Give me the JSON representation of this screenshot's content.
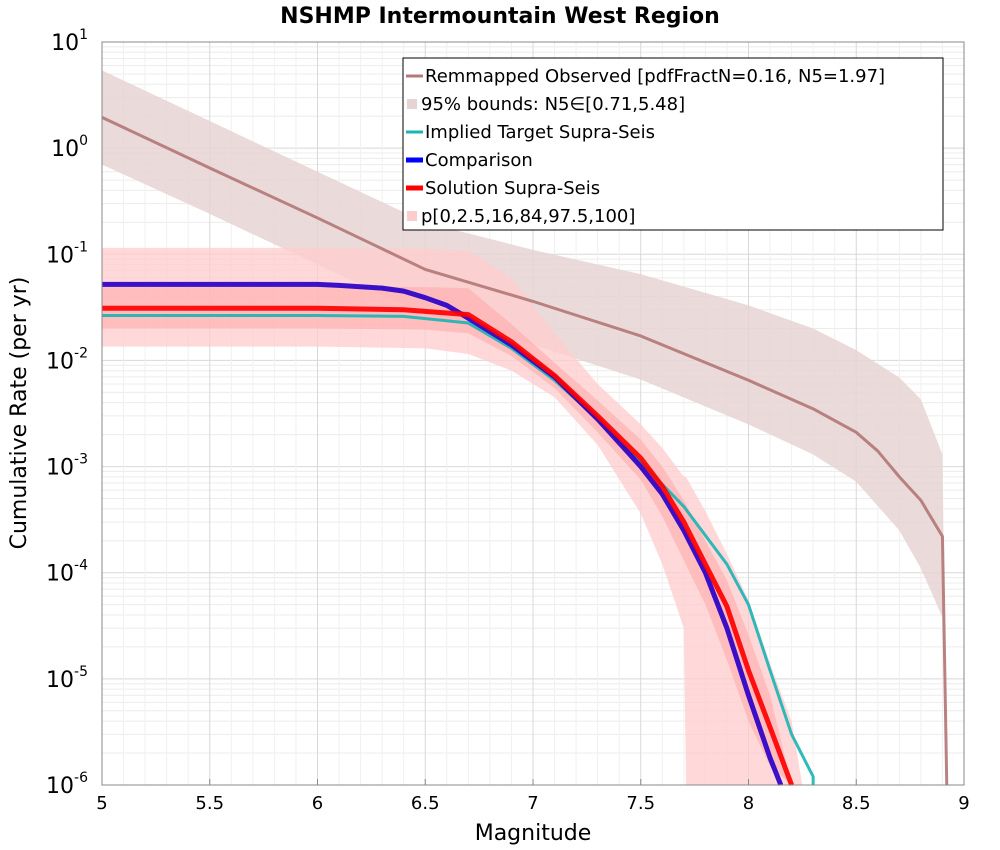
{
  "chart_data": {
    "type": "line",
    "title": "NSHMP Intermountain West Region",
    "xlabel": "Magnitude",
    "ylabel": "Cumulative Rate (per yr)",
    "xlim": [
      5,
      9
    ],
    "ylim": [
      1e-06,
      10
    ],
    "yscale": "log",
    "grid": true,
    "legend_position": "top-right",
    "x_ticks": [
      "5",
      "5.5",
      "6",
      "6.5",
      "7",
      "7.5",
      "8",
      "8.5",
      "9"
    ],
    "y_ticks": [
      {
        "base": "10",
        "exp": "1"
      },
      {
        "base": "10",
        "exp": "0"
      },
      {
        "base": "10",
        "exp": "-1"
      },
      {
        "base": "10",
        "exp": "-2"
      },
      {
        "base": "10",
        "exp": "-3"
      },
      {
        "base": "10",
        "exp": "-4"
      },
      {
        "base": "10",
        "exp": "-5"
      },
      {
        "base": "10",
        "exp": "-6"
      }
    ],
    "legend": [
      {
        "label": "Remmapped Observed [pdfFractN=0.16, N5=1.97]",
        "color": "#b47878",
        "kind": "line"
      },
      {
        "label": "95% bounds: N5∈[0.71,5.48]",
        "color": "#e6d4d4",
        "kind": "band"
      },
      {
        "label": "Implied Target Supra-Seis",
        "color": "#1eb4b4",
        "kind": "line"
      },
      {
        "label": "Comparison",
        "color": "#0000ff",
        "kind": "thick-line"
      },
      {
        "label": "Solution Supra-Seis",
        "color": "#ff0000",
        "kind": "thick-line"
      },
      {
        "label": "p[0,2.5,16,84,97.5,100]",
        "color": "#ffcccc",
        "kind": "band"
      }
    ],
    "series": [
      {
        "name": "Remmapped Observed [pdfFractN=0.16, N5=1.97]",
        "color": "#b47878",
        "width": 3,
        "x": [
          5.0,
          5.5,
          6.0,
          6.5,
          7.0,
          7.5,
          8.0,
          8.3,
          8.5,
          8.6,
          8.7,
          8.8,
          8.9,
          8.92
        ],
        "y": [
          1.95,
          0.65,
          0.22,
          0.072,
          0.036,
          0.017,
          0.0065,
          0.0035,
          0.0021,
          0.0014,
          0.0008,
          0.00048,
          0.00022,
          1e-06
        ]
      },
      {
        "name": "Implied Target Supra-Seis",
        "color": "#1eb4b4",
        "width": 3,
        "x": [
          5.0,
          5.5,
          6.0,
          6.4,
          6.7,
          6.9,
          7.1,
          7.3,
          7.5,
          7.7,
          7.9,
          8.0,
          8.1,
          8.2,
          8.3,
          8.3
        ],
        "y": [
          0.0265,
          0.0265,
          0.0265,
          0.026,
          0.0225,
          0.013,
          0.0065,
          0.0028,
          0.0011,
          0.00042,
          0.00012,
          5e-05,
          1.2e-05,
          3e-06,
          1.2e-06,
          1e-06
        ]
      },
      {
        "name": "Comparison",
        "color": "#2a00c8",
        "width": 5,
        "x": [
          5.0,
          5.5,
          6.0,
          6.1,
          6.3,
          6.4,
          6.5,
          6.6,
          6.7,
          6.9,
          7.1,
          7.3,
          7.5,
          7.6,
          7.7,
          7.8,
          7.9,
          8.0,
          8.1,
          8.15
        ],
        "y": [
          0.052,
          0.052,
          0.052,
          0.051,
          0.048,
          0.045,
          0.039,
          0.033,
          0.025,
          0.014,
          0.007,
          0.0028,
          0.001,
          0.00055,
          0.00025,
          0.0001,
          3e-05,
          7e-06,
          1.8e-06,
          1e-06
        ]
      },
      {
        "name": "Solution Supra-Seis",
        "color": "#ff0000",
        "width": 5,
        "x": [
          5.0,
          5.5,
          6.0,
          6.4,
          6.7,
          6.9,
          7.1,
          7.3,
          7.5,
          7.6,
          7.7,
          7.8,
          7.9,
          8.0,
          8.1,
          8.2
        ],
        "y": [
          0.031,
          0.031,
          0.031,
          0.03,
          0.027,
          0.015,
          0.0072,
          0.003,
          0.0012,
          0.00065,
          0.0003,
          0.00012,
          4.8e-05,
          1.2e-05,
          3.5e-06,
          1e-06
        ]
      }
    ],
    "bands": [
      {
        "name": "95% bounds: N5∈[0.71,5.48]",
        "color": "#e6d4d4",
        "x": [
          5.0,
          5.5,
          6.0,
          6.5,
          7.0,
          7.5,
          8.0,
          8.3,
          8.5,
          8.7,
          8.8,
          8.9,
          8.92
        ],
        "upper": [
          5.4,
          1.8,
          0.6,
          0.2,
          0.11,
          0.065,
          0.033,
          0.02,
          0.0125,
          0.0069,
          0.0043,
          0.0013,
          1e-06
        ],
        "lower": [
          0.7,
          0.24,
          0.08,
          0.027,
          0.014,
          0.0066,
          0.0025,
          0.0013,
          0.00072,
          0.00025,
          0.00011,
          3.8e-05,
          1e-06
        ]
      },
      {
        "name": "p[0,2.5,16,84,97.5,100] outer",
        "color": "#ffcccc",
        "x": [
          5.0,
          5.5,
          6.0,
          6.5,
          6.7,
          6.9,
          7.1,
          7.3,
          7.5,
          7.6,
          7.7,
          7.71,
          7.8,
          7.9,
          8.0,
          8.1,
          8.2,
          8.25
        ],
        "upper": [
          0.115,
          0.115,
          0.115,
          0.113,
          0.108,
          0.06,
          0.018,
          0.006,
          0.0025,
          0.0015,
          0.0008,
          0.0008,
          0.00038,
          0.00015,
          5.5e-05,
          1.4e-05,
          4e-06,
          1e-06
        ],
        "lower": [
          0.0135,
          0.0135,
          0.0135,
          0.013,
          0.0115,
          0.008,
          0.0045,
          0.0016,
          0.00036,
          0.00012,
          3e-05,
          1e-06,
          1e-06,
          1e-06,
          1e-06,
          1e-06,
          1e-06,
          1e-06
        ]
      },
      {
        "name": "p[0,2.5,16,84,97.5,100] inner",
        "color": "#ffb3b3",
        "x": [
          5.0,
          5.5,
          6.0,
          6.5,
          6.7,
          6.9,
          7.1,
          7.3,
          7.5,
          7.6,
          7.7,
          7.8,
          7.9,
          8.0,
          8.1,
          8.2
        ],
        "upper": [
          0.05,
          0.05,
          0.05,
          0.049,
          0.048,
          0.022,
          0.0095,
          0.0042,
          0.0018,
          0.001,
          0.00048,
          0.0002,
          8.5e-05,
          2.6e-05,
          7e-06,
          1e-06
        ],
        "lower": [
          0.02,
          0.02,
          0.02,
          0.0195,
          0.018,
          0.011,
          0.0055,
          0.0021,
          0.00075,
          0.00034,
          0.00013,
          5e-05,
          1.5e-05,
          4e-06,
          1.5e-06,
          1e-06
        ]
      }
    ]
  }
}
